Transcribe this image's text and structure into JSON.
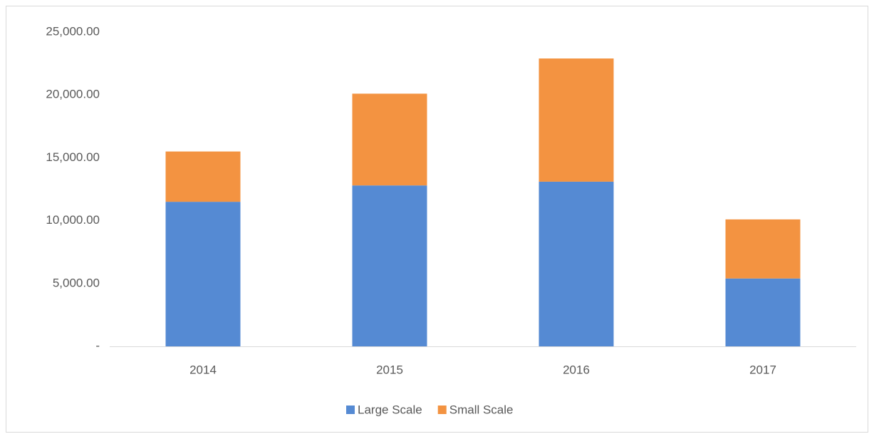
{
  "chart_data": {
    "type": "stacked_bar",
    "categories": [
      "2014",
      "2015",
      "2016",
      "2017"
    ],
    "series": [
      {
        "name": "Large Scale",
        "color": "#558ad3",
        "values": [
          11500,
          12800,
          13100,
          5400
        ]
      },
      {
        "name": "Small Scale",
        "color": "#f39341",
        "values": [
          4000,
          7300,
          9800,
          4700
        ]
      }
    ],
    "ylim": [
      0,
      25000
    ],
    "yticks": [
      {
        "value": 0,
        "label": "-"
      },
      {
        "value": 5000,
        "label": "5,000.00"
      },
      {
        "value": 10000,
        "label": "10,000.00"
      },
      {
        "value": 15000,
        "label": "15,000.00"
      },
      {
        "value": 20000,
        "label": "20,000.00"
      },
      {
        "value": 25000,
        "label": "25,000.00"
      }
    ],
    "legend": "bottom"
  }
}
